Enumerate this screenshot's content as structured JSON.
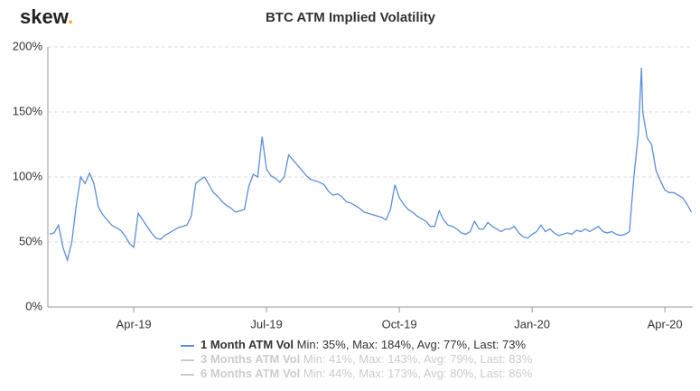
{
  "chart_data": {
    "type": "line",
    "logo": {
      "text": "skew",
      "dot": "."
    },
    "title": "BTC ATM Implied Volatility",
    "x": [
      1.1,
      1.2,
      1.3,
      1.4,
      1.5,
      1.6,
      1.7,
      1.8,
      1.9,
      2.0,
      2.1,
      2.2,
      2.3,
      2.4,
      2.5,
      2.6,
      2.7,
      2.8,
      2.9,
      3.0,
      3.1,
      3.2,
      3.3,
      3.4,
      3.5,
      3.6,
      3.7,
      3.8,
      3.9,
      4.0,
      4.1,
      4.2,
      4.3,
      4.4,
      4.5,
      4.6,
      4.7,
      4.8,
      4.9,
      5.0,
      5.1,
      5.2,
      5.3,
      5.4,
      5.5,
      5.6,
      5.7,
      5.8,
      5.9,
      6.0,
      6.1,
      6.2,
      6.3,
      6.4,
      6.5,
      6.6,
      6.7,
      6.8,
      6.9,
      7.0,
      7.1,
      7.2,
      7.3,
      7.4,
      7.5,
      7.6,
      7.7,
      7.8,
      7.9,
      8.0,
      8.1,
      8.2,
      8.3,
      8.4,
      8.5,
      8.6,
      8.7,
      8.8,
      8.9,
      9.0,
      9.1,
      9.2,
      9.3,
      9.4,
      9.5,
      9.6,
      9.7,
      9.8,
      9.9,
      10.0,
      10.1,
      10.2,
      10.3,
      10.4,
      10.5,
      10.6,
      10.7,
      10.8,
      10.9,
      11.0,
      11.1,
      11.2,
      11.3,
      11.4,
      11.5,
      11.6,
      11.7,
      11.8,
      11.9,
      12.0,
      12.1,
      12.2,
      12.3,
      12.4,
      12.5,
      12.6,
      12.7,
      12.8,
      12.9,
      13.0,
      13.1,
      13.2,
      13.3,
      13.4,
      13.5,
      13.6,
      13.7,
      13.8,
      13.9,
      14.0,
      14.1,
      14.2,
      14.3,
      14.4,
      14.47,
      14.5,
      14.6,
      14.7,
      14.8,
      14.9,
      15.0,
      15.1,
      15.2,
      15.3,
      15.4,
      15.5,
      15.6
    ],
    "series": [
      {
        "name": "1 Month ATM Vol",
        "color": "#5b8fd9",
        "stats": "Min: 35%, Max: 184%, Avg: 77%, Last: 73%",
        "visible": true,
        "values": [
          56,
          57,
          63,
          46,
          36,
          50,
          78,
          100,
          95,
          103,
          95,
          77,
          71,
          67,
          63,
          61,
          59,
          55,
          49,
          46,
          72,
          67,
          62,
          57,
          53,
          52,
          55,
          57,
          59,
          61,
          62,
          63,
          70,
          95,
          98,
          100,
          94,
          88,
          85,
          81,
          78,
          76,
          73,
          74,
          75,
          93,
          102,
          100,
          131,
          106,
          101,
          99,
          96,
          100,
          117,
          113,
          109,
          105,
          101,
          98,
          97,
          96,
          94,
          89,
          86,
          87,
          85,
          81,
          80,
          78,
          76,
          73,
          72,
          71,
          70,
          69,
          67,
          75,
          94,
          84,
          79,
          75,
          73,
          70,
          68,
          66,
          62,
          62,
          74,
          67,
          63,
          62,
          60,
          57,
          56,
          58,
          66,
          60,
          60,
          65,
          62,
          60,
          58,
          60,
          60,
          62,
          57,
          54,
          53,
          56,
          58,
          63,
          58,
          60,
          57,
          55,
          56,
          57,
          56,
          59,
          58,
          60,
          58,
          60,
          62,
          58,
          57,
          58,
          56,
          55,
          56,
          58,
          100,
          133,
          184,
          150,
          130,
          125,
          105,
          97,
          90,
          88,
          88,
          86,
          84,
          79,
          73
        ]
      },
      {
        "name": "3 Months ATM Vol",
        "color": "#cccccc",
        "stats": "Min: 41%, Max: 143%, Avg: 79%, Last: 83%",
        "visible": false
      },
      {
        "name": "6 Months ATM Vol",
        "color": "#cccccc",
        "stats": "Min: 44%, Max: 173%, Avg: 80%, Last: 86%",
        "visible": false
      }
    ],
    "xlim": [
      1.06,
      15.63
    ],
    "xticks": [
      {
        "value": 3,
        "label": "Apr-19"
      },
      {
        "value": 6,
        "label": "Jul-19"
      },
      {
        "value": 9,
        "label": "Oct-19"
      },
      {
        "value": 12,
        "label": "Jan-20"
      },
      {
        "value": 15,
        "label": "Apr-20"
      }
    ],
    "ylim": [
      0,
      200
    ],
    "yticks": [
      {
        "value": 0,
        "label": "0%"
      },
      {
        "value": 50,
        "label": "50%"
      },
      {
        "value": 100,
        "label": "100%"
      },
      {
        "value": 150,
        "label": "150%"
      },
      {
        "value": 200,
        "label": "200%"
      }
    ],
    "grid": true
  }
}
